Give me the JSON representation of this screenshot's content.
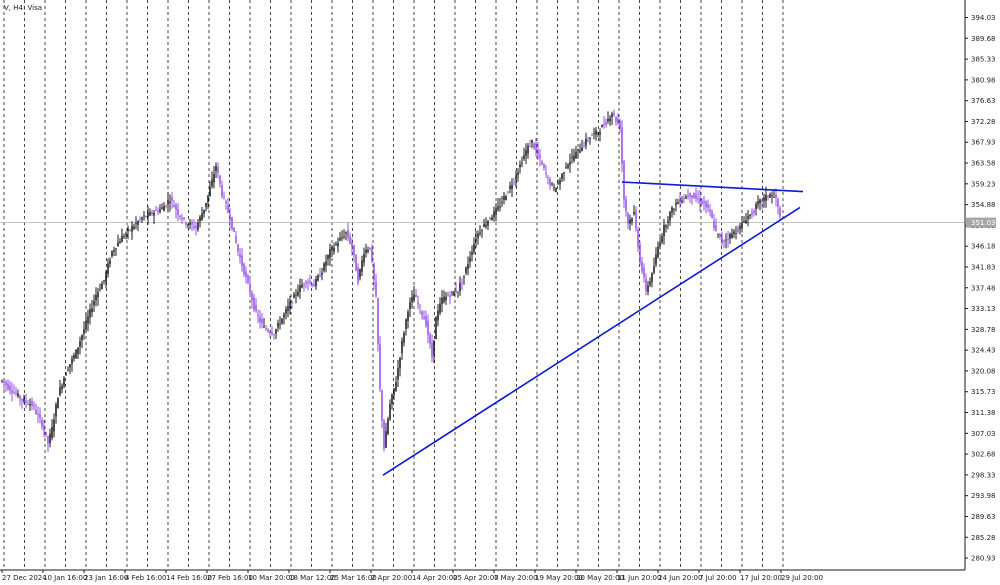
{
  "window": {
    "symbol_label": "V, H4: Visa"
  },
  "chart_data": {
    "type": "candlestick",
    "title": "V, H4: Visa",
    "y_ticks": [
      "394.03",
      "389.68",
      "385.33",
      "380.98",
      "376.63",
      "372.28",
      "367.93",
      "363.58",
      "359.23",
      "354.88",
      "350.53",
      "346.18",
      "341.83",
      "337.48",
      "333.13",
      "328.78",
      "324.43",
      "320.08",
      "315.73",
      "311.38",
      "307.03",
      "302.68",
      "298.33",
      "293.98",
      "289.63",
      "285.28",
      "280.93"
    ],
    "y_range": [
      278.5,
      397.5
    ],
    "x_ticks": [
      "27 Dec 2024",
      "10 Jan 16:00",
      "23 Jan 16:00",
      "4 Feb 16:00",
      "14 Feb 16:00",
      "27 Feb 16:00",
      "10 Mar 20:00",
      "18 Mar 12:00",
      "25 Mar 16:00",
      "2 Apr 20:00",
      "14 Apr 20:00",
      "25 Apr 20:00",
      "7 May 20:00",
      "19 May 20:00",
      "30 May 20:00",
      "11 Jun 20:00",
      "24 Jun 20:00",
      "7 Jul 20:00",
      "17 Jul 20:00",
      "29 Jul 20:00"
    ],
    "current_price": "351.03",
    "current_price_value": 351.03,
    "grid": "vertical-dashed",
    "bull_color": "#000000",
    "bear_color": "#8b3de6",
    "trendline_color": "#0a1bd6",
    "price_tag_color": "#a6a6a6",
    "trendlines": [
      {
        "name": "rising-support",
        "from": {
          "bar": 383,
          "price": 298.3
        },
        "to": {
          "bar": 800,
          "price": 354.2
        }
      },
      {
        "name": "descending-resistance",
        "from": {
          "bar": 622,
          "price": 359.5
        },
        "to": {
          "bar": 803,
          "price": 357.5
        }
      }
    ],
    "price_path": [
      [
        2,
        318
      ],
      [
        12,
        316
      ],
      [
        22,
        314
      ],
      [
        32,
        313
      ],
      [
        42,
        309
      ],
      [
        48,
        305
      ],
      [
        52,
        308
      ],
      [
        58,
        315
      ],
      [
        66,
        320
      ],
      [
        76,
        324
      ],
      [
        86,
        330
      ],
      [
        96,
        336
      ],
      [
        104,
        339
      ],
      [
        112,
        345
      ],
      [
        122,
        348
      ],
      [
        132,
        350
      ],
      [
        142,
        352
      ],
      [
        152,
        353
      ],
      [
        162,
        354
      ],
      [
        170,
        356
      ],
      [
        178,
        353
      ],
      [
        186,
        351
      ],
      [
        196,
        350
      ],
      [
        204,
        354
      ],
      [
        210,
        358
      ],
      [
        216,
        363
      ],
      [
        222,
        357
      ],
      [
        230,
        352
      ],
      [
        238,
        345
      ],
      [
        248,
        338
      ],
      [
        256,
        332
      ],
      [
        264,
        329
      ],
      [
        274,
        328
      ],
      [
        282,
        331
      ],
      [
        290,
        334
      ],
      [
        298,
        337
      ],
      [
        306,
        339
      ],
      [
        314,
        338
      ],
      [
        322,
        341
      ],
      [
        330,
        345
      ],
      [
        338,
        347
      ],
      [
        346,
        349
      ],
      [
        352,
        346
      ],
      [
        358,
        339
      ],
      [
        364,
        345
      ],
      [
        370,
        346
      ],
      [
        376,
        335
      ],
      [
        380,
        316
      ],
      [
        384,
        304
      ],
      [
        390,
        313
      ],
      [
        396,
        318
      ],
      [
        402,
        326
      ],
      [
        408,
        333
      ],
      [
        414,
        336
      ],
      [
        420,
        333
      ],
      [
        426,
        330
      ],
      [
        432,
        323
      ],
      [
        436,
        331
      ],
      [
        442,
        335
      ],
      [
        450,
        336
      ],
      [
        458,
        337
      ],
      [
        464,
        340
      ],
      [
        470,
        344
      ],
      [
        476,
        348
      ],
      [
        482,
        350
      ],
      [
        490,
        352
      ],
      [
        498,
        354
      ],
      [
        506,
        357
      ],
      [
        514,
        360
      ],
      [
        520,
        363
      ],
      [
        526,
        366
      ],
      [
        532,
        368
      ],
      [
        540,
        364
      ],
      [
        548,
        360
      ],
      [
        554,
        358
      ],
      [
        560,
        360
      ],
      [
        566,
        363
      ],
      [
        574,
        365
      ],
      [
        582,
        367
      ],
      [
        590,
        369
      ],
      [
        598,
        370
      ],
      [
        606,
        372
      ],
      [
        612,
        374
      ],
      [
        620,
        371
      ],
      [
        624,
        356
      ],
      [
        628,
        351
      ],
      [
        634,
        353
      ],
      [
        640,
        343
      ],
      [
        646,
        337
      ],
      [
        652,
        340
      ],
      [
        658,
        346
      ],
      [
        664,
        350
      ],
      [
        670,
        353
      ],
      [
        676,
        355
      ],
      [
        682,
        356
      ],
      [
        690,
        357
      ],
      [
        696,
        356
      ],
      [
        704,
        355
      ],
      [
        710,
        353
      ],
      [
        716,
        349
      ],
      [
        722,
        347
      ],
      [
        728,
        348
      ],
      [
        734,
        349
      ],
      [
        740,
        350
      ],
      [
        746,
        352
      ],
      [
        752,
        353
      ],
      [
        758,
        355
      ],
      [
        764,
        356
      ],
      [
        770,
        357
      ],
      [
        776,
        356
      ],
      [
        780,
        352
      ]
    ]
  }
}
